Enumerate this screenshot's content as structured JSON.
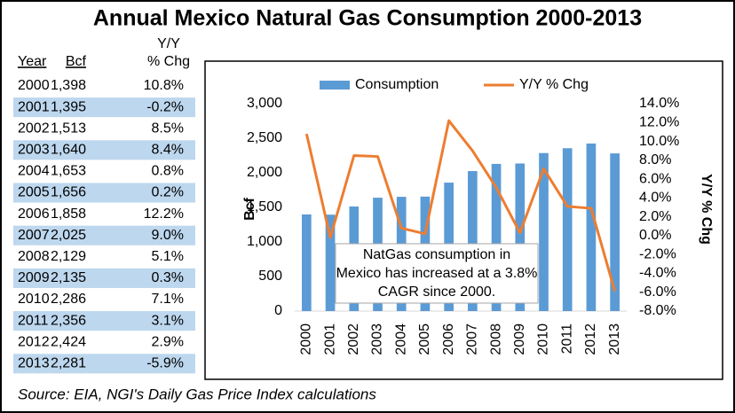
{
  "title": "Annual Mexico Natural Gas Consumption 2000-2013",
  "table": {
    "headers": [
      "Year",
      "Bcf",
      [
        "Y/Y",
        "% Chg"
      ]
    ],
    "rows": [
      [
        "2000",
        "1,398",
        "10.8%"
      ],
      [
        "2001",
        "1,395",
        "-0.2%"
      ],
      [
        "2002",
        "1,513",
        "8.5%"
      ],
      [
        "2003",
        "1,640",
        "8.4%"
      ],
      [
        "2004",
        "1,653",
        "0.8%"
      ],
      [
        "2005",
        "1,656",
        "0.2%"
      ],
      [
        "2006",
        "1,858",
        "12.2%"
      ],
      [
        "2007",
        "2,025",
        "9.0%"
      ],
      [
        "2008",
        "2,129",
        "5.1%"
      ],
      [
        "2009",
        "2,135",
        "0.3%"
      ],
      [
        "2010",
        "2,286",
        "7.1%"
      ],
      [
        "2011",
        "2,356",
        "3.1%"
      ],
      [
        "2012",
        "2,424",
        "2.9%"
      ],
      [
        "2013",
        "2,281",
        "-5.9%"
      ]
    ]
  },
  "chart_data": {
    "type": "combo",
    "categories": [
      "2000",
      "2001",
      "2002",
      "2003",
      "2004",
      "2005",
      "2006",
      "2007",
      "2008",
      "2009",
      "2010",
      "2011",
      "2012",
      "2013"
    ],
    "series": [
      {
        "name": "Consumption",
        "type": "bar",
        "color": "#5b9bd5",
        "values": [
          1398,
          1395,
          1513,
          1640,
          1653,
          1656,
          1858,
          2025,
          2129,
          2135,
          2286,
          2356,
          2424,
          2281
        ]
      },
      {
        "name": "Y/Y % Chg",
        "type": "line",
        "axis": "y2",
        "color": "#ed7d31",
        "values": [
          10.8,
          -0.2,
          8.5,
          8.4,
          0.8,
          0.2,
          12.2,
          9.0,
          5.1,
          0.3,
          7.1,
          3.1,
          2.9,
          -5.9
        ]
      }
    ],
    "ylabel": "Bcf",
    "y2label": "Y/Y % Chg",
    "ylim": [
      0,
      3000
    ],
    "yticks": [
      0,
      500,
      {
        "value": 1000,
        "label": "1,000"
      },
      {
        "value": 1500,
        "label": "1,500"
      },
      {
        "value": 2000,
        "label": "2,000"
      },
      {
        "value": 2500,
        "label": "2,500"
      },
      {
        "value": 3000,
        "label": "3,000"
      }
    ],
    "y2lim": [
      -8,
      14
    ],
    "y2ticks": [
      {
        "value": -8,
        "label": "-8.0%"
      },
      {
        "value": -6,
        "label": "-6.0%"
      },
      {
        "value": -4,
        "label": "-4.0%"
      },
      {
        "value": -2,
        "label": "-2.0%"
      },
      {
        "value": 0,
        "label": "0.0%"
      },
      {
        "value": 2,
        "label": "2.0%"
      },
      {
        "value": 4,
        "label": "4.0%"
      },
      {
        "value": 6,
        "label": "6.0%"
      },
      {
        "value": 8,
        "label": "8.0%"
      },
      {
        "value": 10,
        "label": "10.0%"
      },
      {
        "value": 12,
        "label": "12.0%"
      },
      {
        "value": 14,
        "label": "14.0%"
      }
    ],
    "y2_negative_color": "#ff0000",
    "grid": false,
    "legend": "top",
    "annotation": [
      "NatGas consumption in",
      "Mexico has increased at a 3.8%",
      "CAGR since 2000."
    ]
  },
  "source": "Source: EIA, NGI's Daily Gas Price Index calculations"
}
